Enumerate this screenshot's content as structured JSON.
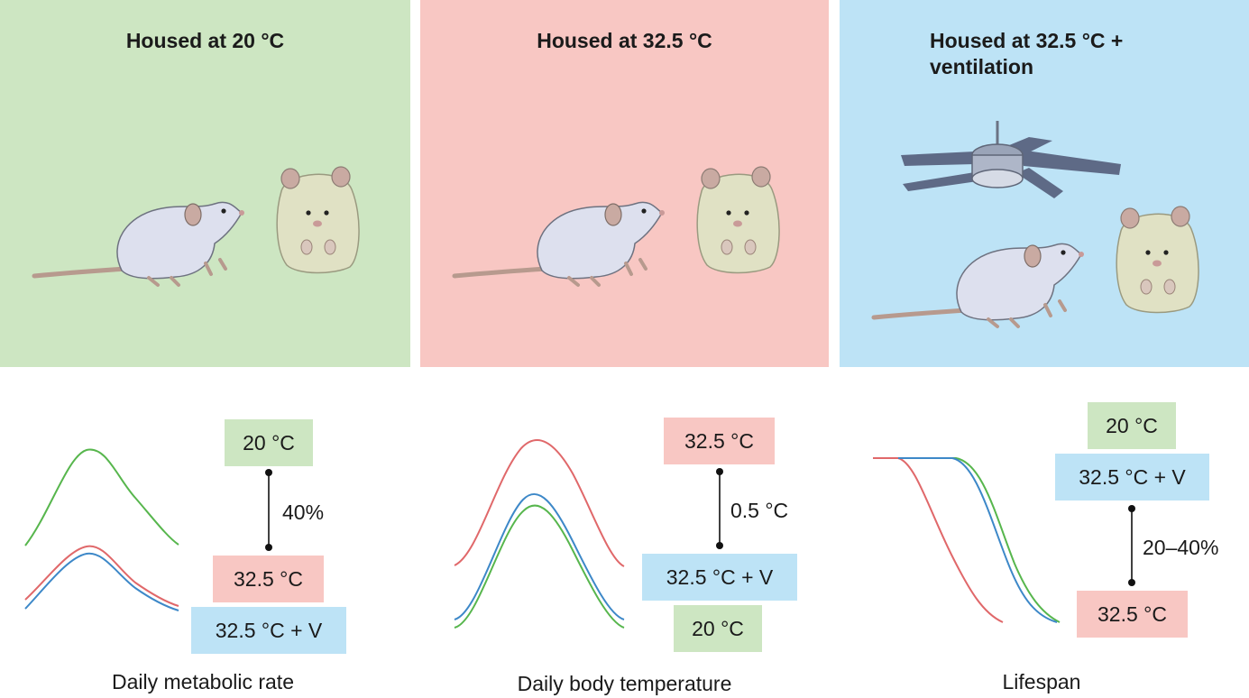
{
  "colors": {
    "green": "#cde6c2",
    "red": "#f8c7c3",
    "blue": "#bde3f6",
    "line_green": "#57b64d",
    "line_red": "#e0686a",
    "line_blue": "#3d88c8"
  },
  "panels": [
    {
      "title": "Housed at 20 °C",
      "icons": [
        "mouse-icon",
        "hamster-icon"
      ]
    },
    {
      "title": "Housed at 32.5 °C",
      "icons": [
        "mouse-icon",
        "hamster-icon"
      ]
    },
    {
      "title_line1": "Housed at 32.5 °C +",
      "title_line2": "ventilation",
      "icons": [
        "ceiling-fan-icon",
        "mouse-icon",
        "hamster-icon"
      ]
    }
  ],
  "metabolic": {
    "caption": "Daily metabolic rate",
    "label_top": "20 °C",
    "difference": "40%",
    "label_mid": "32.5 °C",
    "label_bottom": "32.5 °C + V"
  },
  "body_temp": {
    "caption": "Daily body temperature",
    "label_top": "32.5 °C",
    "difference": "0.5 °C",
    "label_mid": "32.5 °C + V",
    "label_bottom": "20 °C"
  },
  "lifespan": {
    "caption": "Lifespan",
    "label_top": "20 °C",
    "label_mid": "32.5 °C + V",
    "difference": "20–40%",
    "label_bottom": "32.5 °C"
  }
}
